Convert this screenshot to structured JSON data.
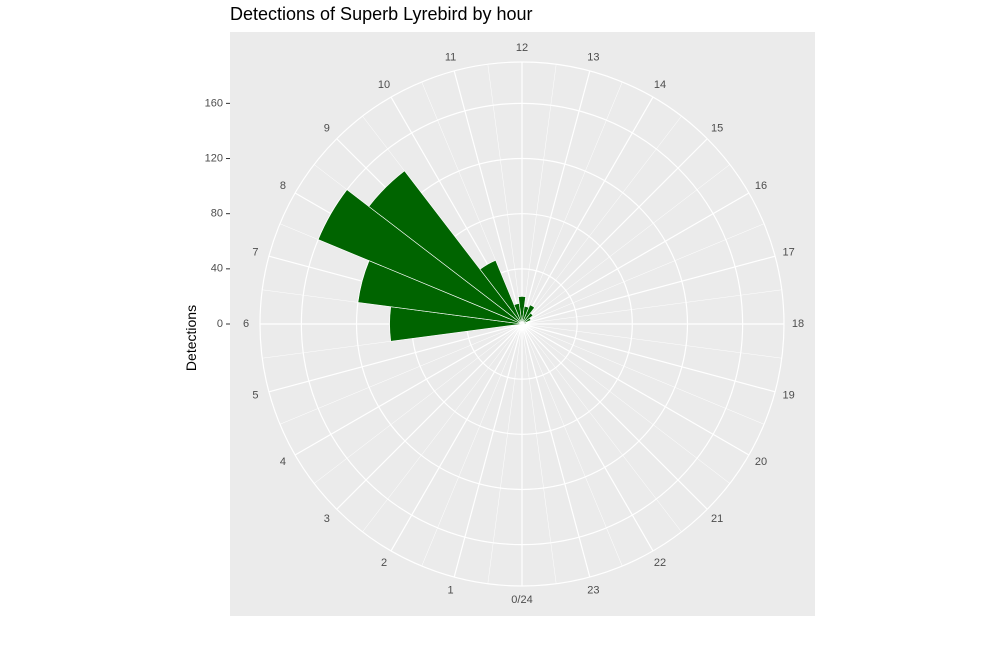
{
  "chart_data": {
    "type": "bar",
    "coord": "polar",
    "title": "Detections of Superb Lyrebird by hour",
    "xlabel": "",
    "ylabel": "Detections",
    "categories": [
      "0/24",
      "1",
      "2",
      "3",
      "4",
      "5",
      "6",
      "7",
      "8",
      "9",
      "10",
      "11",
      "12",
      "13",
      "14",
      "15",
      "16",
      "17",
      "18",
      "19",
      "20",
      "21",
      "22",
      "23"
    ],
    "values": [
      0,
      0,
      0,
      0,
      0,
      0,
      96,
      120,
      160,
      140,
      50,
      15,
      20,
      13,
      15,
      10,
      7,
      3,
      0,
      0,
      0,
      0,
      0,
      0
    ],
    "ylim": [
      0,
      190
    ],
    "yticks": [
      0,
      40,
      80,
      120,
      160
    ],
    "bar_color": "#006400",
    "panel_color": "#EBEBEB",
    "grid_color": "#FFFFFF",
    "grid": true,
    "legend": "none"
  }
}
